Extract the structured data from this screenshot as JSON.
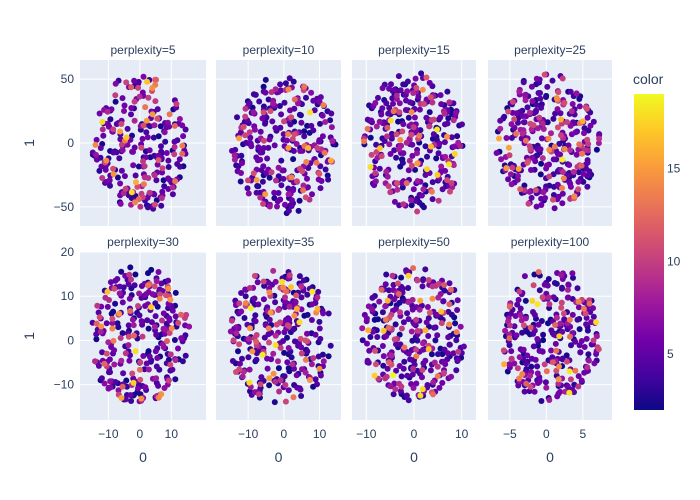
{
  "chart_data": {
    "type": "scatter",
    "color_scale": "plasma",
    "colors": {
      "plot_bg": "#e5ecf6",
      "grid": "#ffffff",
      "text": "#2a3f5f",
      "plasma_stops": [
        "#0d0887",
        "#46039f",
        "#7201a8",
        "#9c179e",
        "#bd3786",
        "#d8576b",
        "#ed7953",
        "#fb9f3a",
        "#fdca26",
        "#f0f921"
      ]
    },
    "y_axis_title": "1",
    "colorbar": {
      "title": "color",
      "range": [
        2,
        19
      ],
      "ticks": [
        5,
        10,
        15
      ],
      "tick_labels": [
        "5",
        "10",
        "15"
      ]
    },
    "rows": [
      {
        "yrange": [
          -65,
          65
        ],
        "yticks": [
          -50,
          0,
          50
        ],
        "ytick_labels": [
          "−50",
          "0",
          "50"
        ]
      },
      {
        "yrange": [
          -18,
          20
        ],
        "yticks": [
          -10,
          0,
          10,
          20
        ],
        "ytick_labels": [
          "−10",
          "0",
          "10",
          "20"
        ]
      }
    ],
    "columns": [
      {
        "x_axis_title": "0",
        "xrange": [
          -19,
          21
        ],
        "xticks": [
          -10,
          0,
          10
        ],
        "xtick_labels": [
          "−10",
          "0",
          "10"
        ]
      },
      {
        "x_axis_title": "0",
        "xrange": [
          -19,
          16
        ],
        "xticks": [
          -10,
          0,
          10
        ],
        "xtick_labels": [
          "−10",
          "0",
          "10"
        ]
      },
      {
        "x_axis_title": "0",
        "xrange": [
          -13,
          13
        ],
        "xticks": [
          -10,
          0,
          10
        ],
        "xtick_labels": [
          "−10",
          "0",
          "10"
        ]
      },
      {
        "x_axis_title": "0",
        "xrange": [
          -8,
          9
        ],
        "xticks": [
          -5,
          0,
          5
        ],
        "xtick_labels": [
          "−5",
          "0",
          "5"
        ]
      }
    ],
    "panels": [
      {
        "title": "perplexity=5",
        "row": 0,
        "col": 0,
        "seed": 11,
        "n": 260,
        "xlim": [
          -15,
          16
        ],
        "ylim": [
          -55,
          55
        ],
        "shape": "blob"
      },
      {
        "title": "perplexity=10",
        "row": 0,
        "col": 1,
        "seed": 23,
        "n": 300,
        "xlim": [
          -15,
          15
        ],
        "ylim": [
          -55,
          52
        ],
        "shape": "round"
      },
      {
        "title": "perplexity=15",
        "row": 0,
        "col": 2,
        "seed": 37,
        "n": 320,
        "xlim": [
          -11,
          11
        ],
        "ylim": [
          -55,
          55
        ],
        "shape": "round"
      },
      {
        "title": "perplexity=25",
        "row": 0,
        "col": 3,
        "seed": 41,
        "n": 330,
        "xlim": [
          -7,
          7.5
        ],
        "ylim": [
          -55,
          55
        ],
        "shape": "round"
      },
      {
        "title": "perplexity=30",
        "row": 1,
        "col": 0,
        "seed": 53,
        "n": 300,
        "xlim": [
          -16,
          16
        ],
        "ylim": [
          -15,
          17
        ],
        "shape": "round"
      },
      {
        "title": "perplexity=35",
        "row": 1,
        "col": 1,
        "seed": 67,
        "n": 310,
        "xlim": [
          -16,
          14
        ],
        "ylim": [
          -15,
          17
        ],
        "shape": "round"
      },
      {
        "title": "perplexity=50",
        "row": 1,
        "col": 2,
        "seed": 79,
        "n": 310,
        "xlim": [
          -11,
          11
        ],
        "ylim": [
          -14,
          17
        ],
        "shape": "round"
      },
      {
        "title": "perplexity=100",
        "row": 1,
        "col": 3,
        "seed": 97,
        "n": 290,
        "xlim": [
          -6.5,
          7.5
        ],
        "ylim": [
          -15,
          17
        ],
        "shape": "round"
      }
    ]
  }
}
